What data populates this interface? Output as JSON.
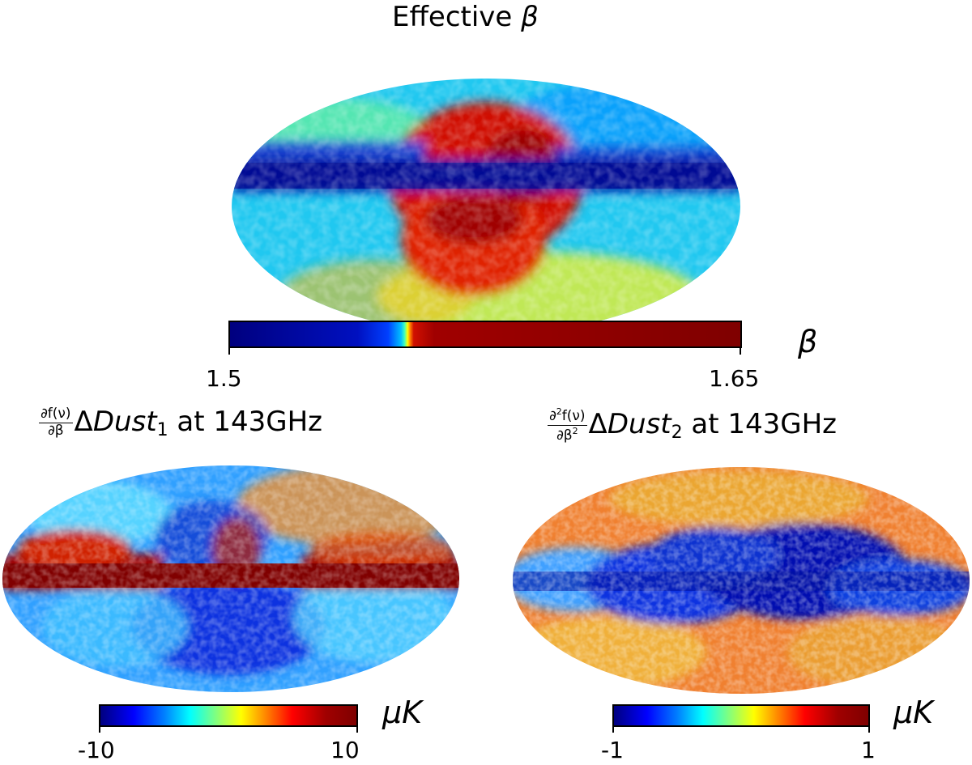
{
  "figures": [
    {
      "id": "effective-beta",
      "title_text": "Effective",
      "title_symbol": "β",
      "colorbar": {
        "min_label": "1.5",
        "max_label": "1.65",
        "unit": "β",
        "colormap": "jet",
        "min": 1.5,
        "max": 1.65
      }
    },
    {
      "id": "dust1",
      "title_frac_num": "∂f(ν)",
      "title_frac_den": "∂β",
      "title_delta": "Δ",
      "title_var": "Dust",
      "title_sub": "1",
      "title_rest": " at 143GHz",
      "colorbar": {
        "min_label": "-10",
        "max_label": "10",
        "unit": "μK",
        "colormap": "jet",
        "min": -10,
        "max": 10
      }
    },
    {
      "id": "dust2",
      "title_frac_num": "∂",
      "title_frac_num_sup": "2",
      "title_frac_num_rest": "f(ν)",
      "title_frac_den": "∂β",
      "title_frac_den_sup": "2",
      "title_delta": "Δ",
      "title_var": "Dust",
      "title_sub": "2",
      "title_rest": " at 143GHz",
      "colorbar": {
        "min_label": "-1",
        "max_label": "1",
        "unit": "μK",
        "colormap": "jet",
        "min": -1,
        "max": 1
      }
    }
  ],
  "colors": {
    "dark_red": "#7f0000",
    "dark_blue": "#00007f",
    "cyan": "#00e0ff",
    "yellow": "#f0f020"
  }
}
